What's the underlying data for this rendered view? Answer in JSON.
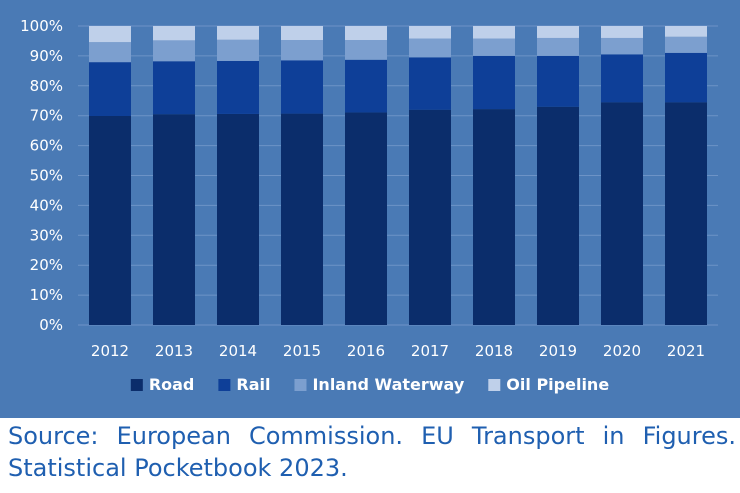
{
  "chart_data": {
    "type": "bar",
    "stacked": true,
    "normalized": true,
    "categories": [
      "2012",
      "2013",
      "2014",
      "2015",
      "2016",
      "2017",
      "2018",
      "2019",
      "2020",
      "2021"
    ],
    "series": [
      {
        "name": "Road",
        "color": "#0b2d6b",
        "values": [
          69.9,
          70.5,
          70.6,
          70.7,
          71.1,
          72.0,
          72.2,
          73.0,
          74.5,
          74.5
        ]
      },
      {
        "name": "Rail",
        "color": "#0e3f98",
        "values": [
          18.0,
          17.7,
          17.7,
          17.8,
          17.6,
          17.5,
          17.8,
          17.0,
          16.0,
          16.5
        ]
      },
      {
        "name": "Inland Waterway",
        "color": "#7c9fcf",
        "values": [
          6.7,
          7.0,
          7.1,
          6.8,
          6.6,
          6.3,
          5.8,
          6.0,
          5.5,
          5.4
        ]
      },
      {
        "name": "Oil Pipeline",
        "color": "#bfd0ea",
        "values": [
          5.4,
          4.8,
          4.6,
          4.7,
          4.7,
          4.2,
          4.2,
          4.0,
          4.0,
          3.6
        ]
      }
    ],
    "ylim": [
      0,
      100
    ],
    "yticks": [
      "0%",
      "10%",
      "20%",
      "30%",
      "40%",
      "50%",
      "60%",
      "70%",
      "80%",
      "90%",
      "100%"
    ],
    "legend_position": "bottom",
    "title": "",
    "xlabel": "",
    "ylabel": ""
  },
  "source_text": "Source: European Commission. EU Transport in Figures. Statistical Pocketbook 2023."
}
